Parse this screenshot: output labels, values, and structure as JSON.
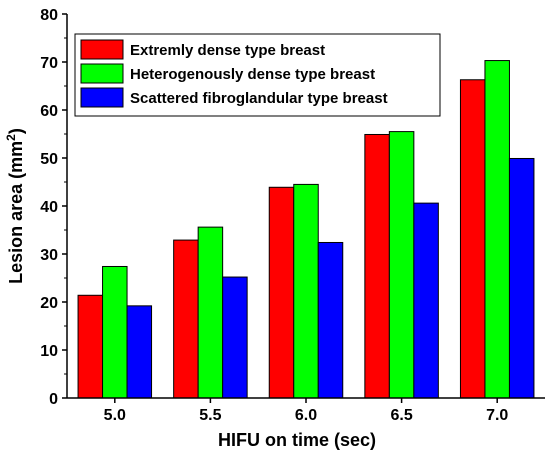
{
  "chart_data": {
    "type": "bar",
    "categories": [
      "5.0",
      "5.5",
      "6.0",
      "6.5",
      "7.0"
    ],
    "series": [
      {
        "name": "Extremly dense type breast",
        "color": "#ff0000",
        "values": [
          21.4,
          32.9,
          43.9,
          54.9,
          66.3
        ]
      },
      {
        "name": "Heterogenously dense type breast",
        "color": "#00ff00",
        "values": [
          27.4,
          35.6,
          44.5,
          55.5,
          70.3
        ]
      },
      {
        "name": "Scattered fibroglandular type breast",
        "color": "#0000ff",
        "values": [
          19.2,
          25.2,
          32.4,
          40.6,
          49.9
        ]
      }
    ],
    "xlabel": "HIFU on time (sec)",
    "ylabel_main": "Lesion area (mm",
    "ylabel_sup": "2",
    "ylabel_close": ")",
    "ylim": [
      0,
      80
    ],
    "yticks": [
      "0",
      "10",
      "20",
      "30",
      "40",
      "50",
      "60",
      "70",
      "80"
    ],
    "grid": false,
    "legend_position": "top-left"
  }
}
